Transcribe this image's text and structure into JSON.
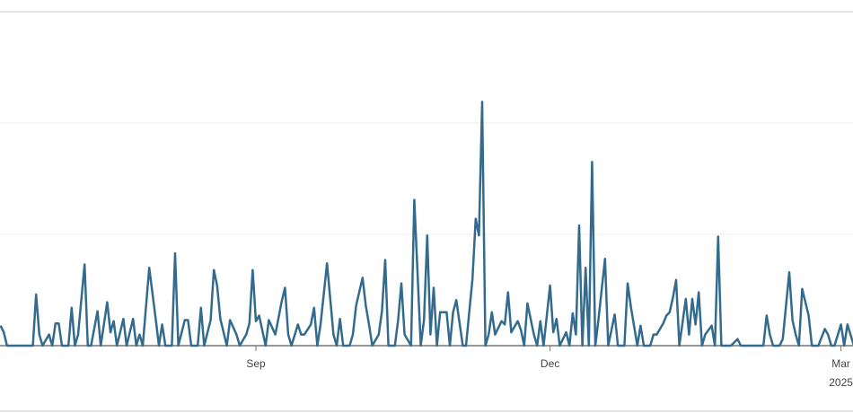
{
  "chart_data": {
    "type": "line",
    "title": "",
    "xlabel": "",
    "ylabel": "",
    "grid": true,
    "line_color": "#336b8e",
    "ylim": [
      0,
      3
    ],
    "y_gridlines": [
      1,
      2,
      3
    ],
    "x_ticks": [
      {
        "date": "2024-09-01",
        "label": "Sep",
        "sublabel": ""
      },
      {
        "date": "2024-12-01",
        "label": "Dec",
        "sublabel": ""
      },
      {
        "date": "2025-03-01",
        "label": "Mar",
        "sublabel": "2025"
      }
    ],
    "points": [
      [
        "2024-06-14",
        0.18
      ],
      [
        "2024-06-15",
        0.12
      ],
      [
        "2024-06-16",
        0
      ],
      [
        "2024-06-24",
        0
      ],
      [
        "2024-06-25",
        0.46
      ],
      [
        "2024-06-26",
        0.1
      ],
      [
        "2024-06-27",
        0
      ],
      [
        "2024-06-29",
        0.1
      ],
      [
        "2024-06-30",
        0
      ],
      [
        "2024-07-01",
        0.2
      ],
      [
        "2024-07-02",
        0.2
      ],
      [
        "2024-07-03",
        0
      ],
      [
        "2024-07-05",
        0
      ],
      [
        "2024-07-06",
        0.34
      ],
      [
        "2024-07-07",
        0
      ],
      [
        "2024-07-08",
        0.1
      ],
      [
        "2024-07-10",
        0.73
      ],
      [
        "2024-07-11",
        0
      ],
      [
        "2024-07-12",
        0
      ],
      [
        "2024-07-14",
        0.31
      ],
      [
        "2024-07-15",
        0
      ],
      [
        "2024-07-17",
        0.39
      ],
      [
        "2024-07-18",
        0.12
      ],
      [
        "2024-07-19",
        0.22
      ],
      [
        "2024-07-20",
        0
      ],
      [
        "2024-07-22",
        0.24
      ],
      [
        "2024-07-23",
        0
      ],
      [
        "2024-07-25",
        0.24
      ],
      [
        "2024-07-26",
        0
      ],
      [
        "2024-07-27",
        0.1
      ],
      [
        "2024-07-28",
        0
      ],
      [
        "2024-07-30",
        0.7
      ],
      [
        "2024-08-01",
        0.24
      ],
      [
        "2024-08-02",
        0
      ],
      [
        "2024-08-03",
        0.19
      ],
      [
        "2024-08-04",
        0
      ],
      [
        "2024-08-06",
        0
      ],
      [
        "2024-08-07",
        0.83
      ],
      [
        "2024-08-08",
        0
      ],
      [
        "2024-08-10",
        0.23
      ],
      [
        "2024-08-11",
        0.23
      ],
      [
        "2024-08-12",
        0
      ],
      [
        "2024-08-14",
        0
      ],
      [
        "2024-08-15",
        0.34
      ],
      [
        "2024-08-16",
        0
      ],
      [
        "2024-08-18",
        0.23
      ],
      [
        "2024-08-19",
        0.68
      ],
      [
        "2024-08-20",
        0.54
      ],
      [
        "2024-08-21",
        0.24
      ],
      [
        "2024-08-23",
        0
      ],
      [
        "2024-08-24",
        0.23
      ],
      [
        "2024-08-26",
        0.1
      ],
      [
        "2024-08-27",
        0
      ],
      [
        "2024-08-29",
        0.1
      ],
      [
        "2024-08-30",
        0.2
      ],
      [
        "2024-08-31",
        0.68
      ],
      [
        "2024-09-01",
        0.22
      ],
      [
        "2024-09-02",
        0.27
      ],
      [
        "2024-09-04",
        0
      ],
      [
        "2024-09-05",
        0.23
      ],
      [
        "2024-09-07",
        0.1
      ],
      [
        "2024-09-09",
        0.4
      ],
      [
        "2024-09-10",
        0.52
      ],
      [
        "2024-09-11",
        0.1
      ],
      [
        "2024-09-12",
        0
      ],
      [
        "2024-09-14",
        0.19
      ],
      [
        "2024-09-15",
        0.1
      ],
      [
        "2024-09-16",
        0.1
      ],
      [
        "2024-09-18",
        0.19
      ],
      [
        "2024-09-19",
        0.34
      ],
      [
        "2024-09-20",
        0
      ],
      [
        "2024-09-21",
        0.19
      ],
      [
        "2024-09-23",
        0.74
      ],
      [
        "2024-09-25",
        0.1
      ],
      [
        "2024-09-26",
        0
      ],
      [
        "2024-09-27",
        0.24
      ],
      [
        "2024-09-28",
        0
      ],
      [
        "2024-09-30",
        0
      ],
      [
        "2024-10-01",
        0.1
      ],
      [
        "2024-10-02",
        0.36
      ],
      [
        "2024-10-04",
        0.61
      ],
      [
        "2024-10-05",
        0.36
      ],
      [
        "2024-10-06",
        0.19
      ],
      [
        "2024-10-07",
        0
      ],
      [
        "2024-10-09",
        0.1
      ],
      [
        "2024-10-10",
        0.31
      ],
      [
        "2024-10-11",
        0.77
      ],
      [
        "2024-10-12",
        0
      ],
      [
        "2024-10-14",
        0
      ],
      [
        "2024-10-15",
        0.23
      ],
      [
        "2024-10-16",
        0.56
      ],
      [
        "2024-10-17",
        0.1
      ],
      [
        "2024-10-19",
        0
      ],
      [
        "2024-10-20",
        1.31
      ],
      [
        "2024-10-22",
        0
      ],
      [
        "2024-10-23",
        0.23
      ],
      [
        "2024-10-24",
        0.99
      ],
      [
        "2024-10-25",
        0.1
      ],
      [
        "2024-10-26",
        0.52
      ],
      [
        "2024-10-27",
        0
      ],
      [
        "2024-10-28",
        0.3
      ],
      [
        "2024-10-30",
        0.3
      ],
      [
        "2024-10-31",
        0
      ],
      [
        "2024-11-01",
        0.3
      ],
      [
        "2024-11-02",
        0.41
      ],
      [
        "2024-11-04",
        0
      ],
      [
        "2024-11-05",
        0
      ],
      [
        "2024-11-07",
        0.6
      ],
      [
        "2024-11-08",
        1.14
      ],
      [
        "2024-11-09",
        0.99
      ],
      [
        "2024-11-10",
        2.19
      ],
      [
        "2024-11-11",
        0
      ],
      [
        "2024-11-12",
        0.1
      ],
      [
        "2024-11-13",
        0.3
      ],
      [
        "2024-11-14",
        0.1
      ],
      [
        "2024-11-16",
        0.22
      ],
      [
        "2024-11-17",
        0.19
      ],
      [
        "2024-11-18",
        0.48
      ],
      [
        "2024-11-19",
        0.12
      ],
      [
        "2024-11-21",
        0.22
      ],
      [
        "2024-11-22",
        0.14
      ],
      [
        "2024-11-23",
        0
      ],
      [
        "2024-11-24",
        0.38
      ],
      [
        "2024-11-26",
        0.1
      ],
      [
        "2024-11-27",
        0
      ],
      [
        "2024-11-28",
        0.22
      ],
      [
        "2024-11-29",
        0
      ],
      [
        "2024-12-01",
        0.54
      ],
      [
        "2024-12-02",
        0.12
      ],
      [
        "2024-12-03",
        0.24
      ],
      [
        "2024-12-04",
        0
      ],
      [
        "2024-12-06",
        0.12
      ],
      [
        "2024-12-07",
        0
      ],
      [
        "2024-12-08",
        0.29
      ],
      [
        "2024-12-09",
        0.1
      ],
      [
        "2024-12-10",
        1.08
      ],
      [
        "2024-12-11",
        0
      ],
      [
        "2024-12-12",
        0.7
      ],
      [
        "2024-12-13",
        0
      ],
      [
        "2024-12-14",
        1.65
      ],
      [
        "2024-12-15",
        0
      ],
      [
        "2024-12-16",
        0.24
      ],
      [
        "2024-12-18",
        0.78
      ],
      [
        "2024-12-19",
        0
      ],
      [
        "2024-12-21",
        0.28
      ],
      [
        "2024-12-22",
        0
      ],
      [
        "2024-12-24",
        0
      ],
      [
        "2024-12-25",
        0.56
      ],
      [
        "2024-12-26",
        0.35
      ],
      [
        "2024-12-28",
        0
      ],
      [
        "2024-12-29",
        0.18
      ],
      [
        "2024-12-30",
        0
      ],
      [
        "2025-01-01",
        0
      ],
      [
        "2025-01-02",
        0.1
      ],
      [
        "2025-01-03",
        0.1
      ],
      [
        "2025-01-05",
        0.2
      ],
      [
        "2025-01-06",
        0.27
      ],
      [
        "2025-01-07",
        0.3
      ],
      [
        "2025-01-08",
        0.43
      ],
      [
        "2025-01-09",
        0.59
      ],
      [
        "2025-01-10",
        0
      ],
      [
        "2025-01-12",
        0.42
      ],
      [
        "2025-01-13",
        0.1
      ],
      [
        "2025-01-14",
        0.42
      ],
      [
        "2025-01-15",
        0.19
      ],
      [
        "2025-01-16",
        0.48
      ],
      [
        "2025-01-17",
        0
      ],
      [
        "2025-01-18",
        0.1
      ],
      [
        "2025-01-20",
        0.18
      ],
      [
        "2025-01-21",
        0
      ],
      [
        "2025-01-22",
        0.98
      ],
      [
        "2025-01-23",
        0
      ],
      [
        "2025-01-26",
        0
      ],
      [
        "2025-01-28",
        0.06
      ],
      [
        "2025-01-29",
        0
      ],
      [
        "2025-02-05",
        0
      ],
      [
        "2025-02-06",
        0.27
      ],
      [
        "2025-02-07",
        0.1
      ],
      [
        "2025-02-08",
        0
      ],
      [
        "2025-02-10",
        0
      ],
      [
        "2025-02-11",
        0.06
      ],
      [
        "2025-02-13",
        0.66
      ],
      [
        "2025-02-14",
        0.23
      ],
      [
        "2025-02-15",
        0.1
      ],
      [
        "2025-02-16",
        0
      ],
      [
        "2025-02-17",
        0.51
      ],
      [
        "2025-02-19",
        0.27
      ],
      [
        "2025-02-20",
        0
      ],
      [
        "2025-02-22",
        0
      ],
      [
        "2025-02-24",
        0.15
      ],
      [
        "2025-02-25",
        0.1
      ],
      [
        "2025-02-26",
        0
      ],
      [
        "2025-02-27",
        0
      ],
      [
        "2025-03-01",
        0.19
      ],
      [
        "2025-03-02",
        0
      ],
      [
        "2025-03-03",
        0.19
      ],
      [
        "2025-03-05",
        0
      ]
    ]
  }
}
